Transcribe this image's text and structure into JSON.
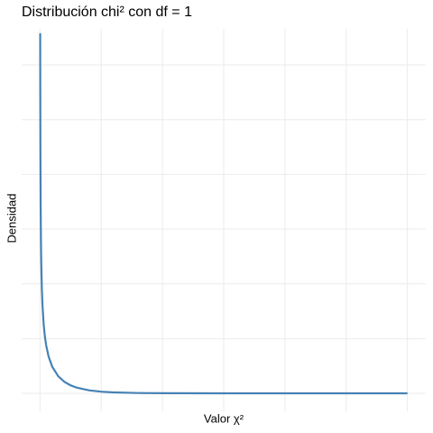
{
  "chart_data": {
    "type": "line",
    "title": "Distribución chi² con df = 1",
    "x_label": "Valor χ²",
    "y_label": "Densidad",
    "x": [
      0.0145,
      0.02,
      0.03,
      0.05,
      0.075,
      0.1,
      0.15,
      0.2,
      0.3,
      0.4,
      0.5,
      0.7,
      1,
      1.5,
      2,
      2.5,
      3,
      4,
      5,
      6,
      8,
      10,
      15,
      20,
      25,
      30
    ],
    "series": [
      {
        "name": "Densidad",
        "color": "#4682b4",
        "values": [
          3.29,
          2.793,
          2.269,
          1.74,
          1.403,
          1.2,
          0.9556,
          0.8072,
          0.6269,
          0.5164,
          0.4394,
          0.336,
          0.242,
          0.1539,
          0.1038,
          0.0723,
          0.0514,
          0.027,
          0.0146,
          0.0081,
          0.0026,
          0.0009,
          0.0001,
          0,
          0,
          0
        ]
      }
    ],
    "xlim": [
      -1.5,
      31.5
    ],
    "ylim": [
      -0.165,
      3.33
    ],
    "xticks": [
      0,
      5,
      10,
      15,
      20,
      25,
      30
    ],
    "yticks": [
      0,
      0.5,
      1,
      1.5,
      2,
      2.5,
      3
    ],
    "grid": true,
    "tick_labels": false
  }
}
